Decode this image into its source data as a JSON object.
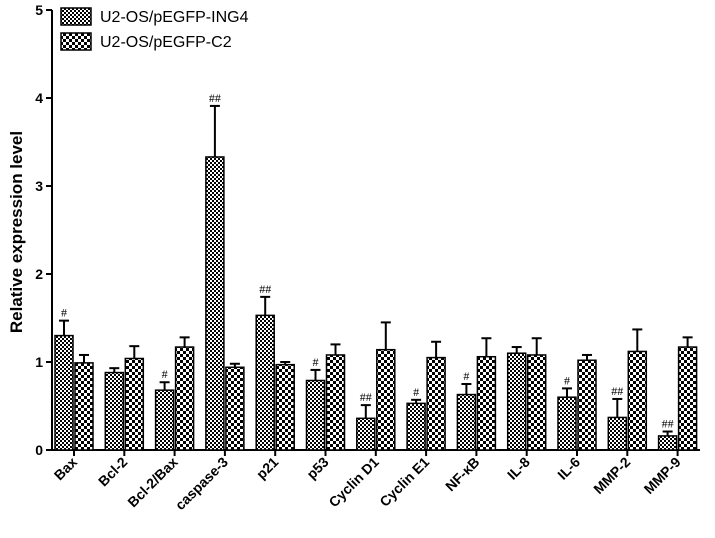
{
  "chart_data": {
    "type": "bar",
    "title": "",
    "xlabel": "",
    "ylabel": "Relative expression level",
    "ylim": [
      0,
      5
    ],
    "yticks": [
      "0",
      "1",
      "2",
      "3",
      "4",
      "5"
    ],
    "categories": [
      "Bax",
      "Bcl-2",
      "Bcl-2/Bax",
      "caspase-3",
      "p21",
      "p53",
      "Cyclin D1",
      "Cyclin E1",
      "NF-κB",
      "IL-8",
      "IL-6",
      "MMP-2",
      "MMP-9"
    ],
    "series": [
      {
        "name": "U2-OS/pEGFP-ING4",
        "pattern": "dense-checker",
        "values": [
          1.3,
          0.88,
          0.68,
          3.33,
          1.53,
          0.79,
          0.36,
          0.53,
          0.63,
          1.1,
          0.6,
          0.37,
          0.16
        ],
        "errors": [
          0.17,
          0.05,
          0.09,
          0.58,
          0.21,
          0.12,
          0.15,
          0.04,
          0.12,
          0.07,
          0.1,
          0.21,
          0.05
        ],
        "annotations": [
          "#",
          "",
          "#",
          "##",
          "##",
          "#",
          "##",
          "#",
          "#",
          "",
          "#",
          "##",
          "##"
        ]
      },
      {
        "name": "U2-OS/pEGFP-C2",
        "pattern": "coarse-checker",
        "values": [
          0.99,
          1.04,
          1.17,
          0.94,
          0.97,
          1.08,
          1.14,
          1.05,
          1.06,
          1.08,
          1.02,
          1.12,
          1.17
        ],
        "errors": [
          0.09,
          0.14,
          0.11,
          0.04,
          0.03,
          0.12,
          0.31,
          0.18,
          0.21,
          0.19,
          0.06,
          0.25,
          0.11
        ],
        "annotations": [
          "",
          "",
          "",
          "",
          "",
          "",
          "",
          "",
          "",
          "",
          "",
          "",
          ""
        ]
      }
    ],
    "grid": false,
    "legend_position": "top-left"
  }
}
